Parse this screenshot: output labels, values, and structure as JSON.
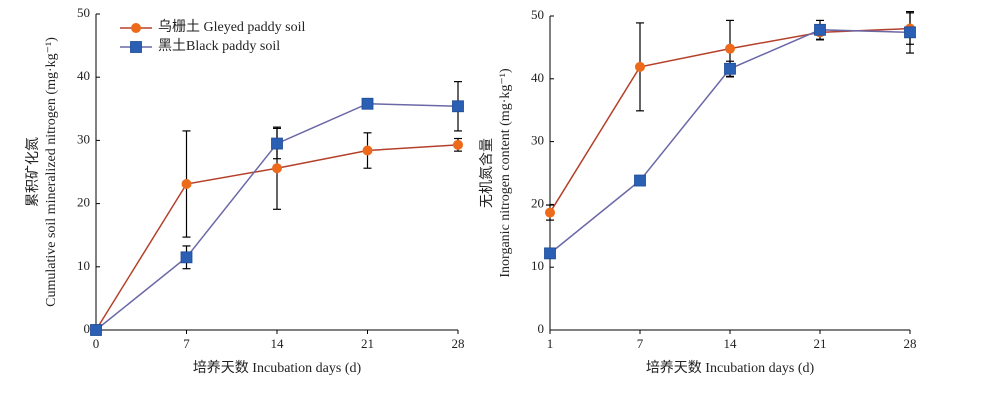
{
  "chart_data": [
    {
      "type": "line",
      "ylabel_cn": "累积矿化氮",
      "ylabel": "Cumulative soil mineralized nitrogen (mg·kg⁻¹)",
      "xlabel": "培养天数 Incubation days (d)",
      "x": [
        0,
        7,
        14,
        21,
        28
      ],
      "xlim": [
        0,
        28
      ],
      "xticks": [
        0,
        7,
        14,
        21,
        28
      ],
      "ylim": [
        0,
        50
      ],
      "yticks": [
        0,
        10,
        20,
        30,
        40,
        50
      ],
      "legend": "upper left",
      "series": [
        {
          "name": "乌栅土 Gleyed paddy soil",
          "color": "#ec6a1a",
          "line_color": "#b5402a",
          "marker": "circle",
          "values": [
            0,
            23.1,
            25.6,
            28.4,
            29.3
          ],
          "errors": [
            0,
            8.4,
            6.5,
            2.8,
            1.0
          ]
        },
        {
          "name": "黑土Black paddy soil",
          "color": "#2b5fb4",
          "line_color": "#6b68a8",
          "marker": "square",
          "values": [
            0,
            11.5,
            29.5,
            35.8,
            35.4
          ],
          "errors": [
            0,
            1.8,
            2.4,
            0.6,
            3.9
          ]
        }
      ]
    },
    {
      "type": "line",
      "ylabel_cn": "无机氮含量",
      "ylabel": "Inorganic nitrogen content (mg·kg⁻¹)",
      "xlabel": "培养天数 Incubation days (d)",
      "categories": [
        "1",
        "7",
        "14",
        "21",
        "28"
      ],
      "ylim": [
        0,
        50
      ],
      "yticks": [
        0,
        10,
        20,
        30,
        40,
        50
      ],
      "series": [
        {
          "color": "#ec6a1a",
          "line_color": "#b5402a",
          "marker": "circle",
          "values": [
            18.7,
            41.9,
            44.8,
            47.4,
            48.0
          ],
          "errors": [
            1.2,
            7.0,
            4.5,
            1.2,
            2.5
          ]
        },
        {
          "color": "#2b5fb4",
          "line_color": "#6b68a8",
          "marker": "square",
          "values": [
            12.2,
            23.8,
            41.6,
            47.8,
            47.4
          ],
          "errors": [
            0.5,
            0.6,
            1.2,
            1.5,
            3.3
          ]
        }
      ]
    }
  ]
}
